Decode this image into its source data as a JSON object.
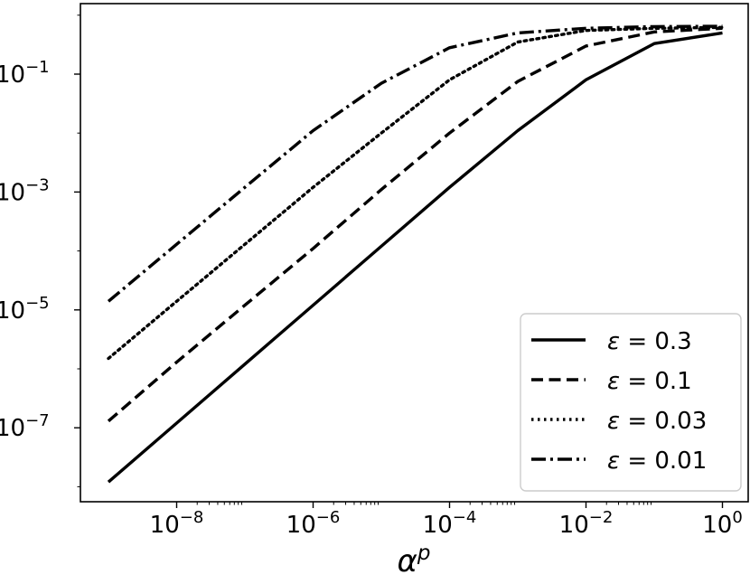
{
  "chart_data": {
    "type": "line",
    "title": "",
    "xlabel": "α",
    "xlabel_sup": "p",
    "ylabel": "",
    "xscale": "log",
    "yscale": "log",
    "xlim": [
      1e-09,
      1.3
    ],
    "ylim": [
      3e-08,
      1.3
    ],
    "grid": false,
    "legend_position": "lower-right",
    "x_ticks": [
      {
        "value": 1e-08,
        "base": "10",
        "exp": "−8"
      },
      {
        "value": 1e-06,
        "base": "10",
        "exp": "−6"
      },
      {
        "value": 0.0001,
        "base": "10",
        "exp": "−4"
      },
      {
        "value": 0.01,
        "base": "10",
        "exp": "−2"
      },
      {
        "value": 1,
        "base": "10",
        "exp": "0"
      }
    ],
    "y_ticks": [
      {
        "value": 0.1,
        "base": "10",
        "exp": "−1"
      },
      {
        "value": 0.001,
        "base": "10",
        "exp": "−3"
      },
      {
        "value": 1e-05,
        "base": "10",
        "exp": "−5"
      },
      {
        "value": 1e-07,
        "base": "10",
        "exp": "−7"
      }
    ],
    "x": [
      1e-09,
      1e-08,
      1e-07,
      1e-06,
      1e-05,
      0.0001,
      0.001,
      0.01,
      0.1,
      1
    ],
    "series": [
      {
        "name": "ε = 0.3",
        "legend_symbol": "ε",
        "legend_value": "0.3",
        "style": "solid",
        "values": [
          1.2e-08,
          1.2e-07,
          1.2e-06,
          1.2e-05,
          0.00012,
          0.0012,
          0.011,
          0.08,
          0.33,
          0.5
        ]
      },
      {
        "name": "ε = 0.1",
        "legend_symbol": "ε",
        "legend_value": "0.1",
        "style": "dashed",
        "values": [
          1.3e-07,
          1.3e-06,
          1.2e-05,
          0.00011,
          0.0011,
          0.01,
          0.075,
          0.3,
          0.52,
          0.6
        ]
      },
      {
        "name": "ε = 0.03",
        "legend_symbol": "ε",
        "legend_value": "0.03",
        "style": "dotted",
        "values": [
          1.5e-06,
          1.4e-05,
          0.00013,
          0.0012,
          0.01,
          0.08,
          0.35,
          0.55,
          0.6,
          0.62
        ]
      },
      {
        "name": "ε = 0.01",
        "legend_symbol": "ε",
        "legend_value": "0.01",
        "style": "dashdot",
        "values": [
          1.4e-05,
          0.00013,
          0.0012,
          0.011,
          0.07,
          0.28,
          0.5,
          0.6,
          0.64,
          0.65
        ]
      }
    ]
  }
}
